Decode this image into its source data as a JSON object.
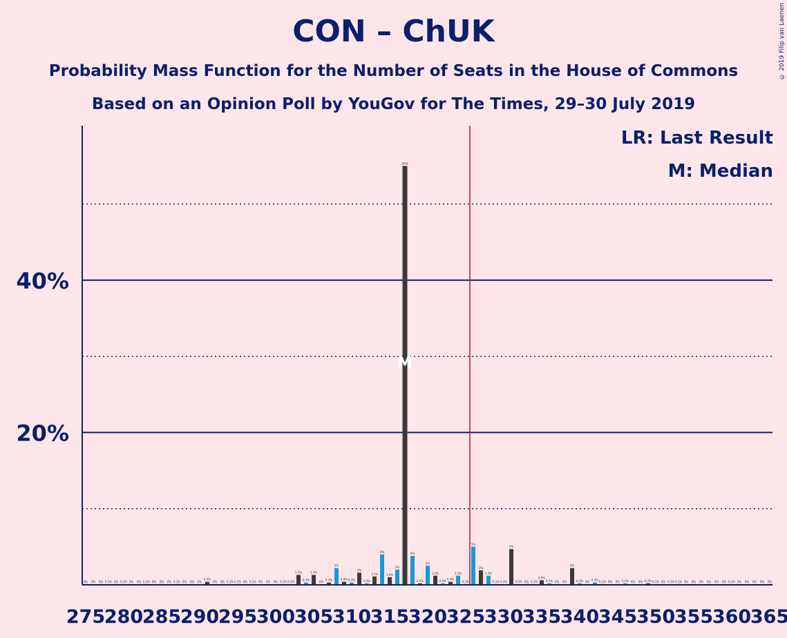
{
  "header": {
    "title": "CON – ChUK",
    "subtitle1": "Probability Mass Function for the Number of Seats in the House of Commons",
    "subtitle2": "Based on an Opinion Poll by YouGov for The Times, 29–30 July 2019",
    "copyright": "© 2019 Filip van Laenen"
  },
  "legend": {
    "last_result": "LR: Last Result",
    "median": "M: Median"
  },
  "colors": {
    "background": "#fde6e9",
    "text": "#0b1f6b",
    "bar_dark": "#3a3a3a",
    "bar_blue": "#1a98d6",
    "last_result_line": "#cc1122",
    "grid": "#0b1f6b"
  },
  "chart_data": {
    "type": "bar",
    "ylim": [
      0,
      60
    ],
    "yticks": [
      20,
      40
    ],
    "ytick_labels": [
      "20%",
      "40%"
    ],
    "solid_gridlines": [
      20,
      40
    ],
    "dotted_gridlines": [
      10,
      30,
      50
    ],
    "xlim": [
      275,
      365
    ],
    "xticks": [
      275,
      280,
      285,
      290,
      295,
      300,
      305,
      310,
      315,
      320,
      325,
      330,
      335,
      340,
      345,
      350,
      355,
      360,
      365
    ],
    "last_result": 326,
    "median": 317,
    "median_marker": "M",
    "last_result_marker": "LR",
    "bars": [
      {
        "seat": 275,
        "value": 0.02,
        "label": "0%"
      },
      {
        "seat": 276,
        "value": 0.02,
        "label": "0%"
      },
      {
        "seat": 277,
        "value": 0.02,
        "label": "0%"
      },
      {
        "seat": 278,
        "value": 0.1,
        "label": "0.1%"
      },
      {
        "seat": 279,
        "value": 0.02,
        "label": "0%"
      },
      {
        "seat": 280,
        "value": 0.1,
        "label": "0.1%"
      },
      {
        "seat": 281,
        "value": 0.02,
        "label": "0%"
      },
      {
        "seat": 282,
        "value": 0.02,
        "label": "0%"
      },
      {
        "seat": 283,
        "value": 0.1,
        "label": "0.1%"
      },
      {
        "seat": 284,
        "value": 0.02,
        "label": "0%"
      },
      {
        "seat": 285,
        "value": 0.02,
        "label": "0%"
      },
      {
        "seat": 286,
        "value": 0.02,
        "label": "0%"
      },
      {
        "seat": 287,
        "value": 0.1,
        "label": "0.1%"
      },
      {
        "seat": 288,
        "value": 0.02,
        "label": "0%"
      },
      {
        "seat": 289,
        "value": 0.02,
        "label": "0%"
      },
      {
        "seat": 290,
        "value": 0.02,
        "label": "0%"
      },
      {
        "seat": 291,
        "value": 0.4,
        "label": "0.4%"
      },
      {
        "seat": 292,
        "value": 0.02,
        "label": "0%"
      },
      {
        "seat": 293,
        "value": 0.02,
        "label": "0%"
      },
      {
        "seat": 294,
        "value": 0.1,
        "label": "0.1%"
      },
      {
        "seat": 295,
        "value": 0.1,
        "label": "0.1%"
      },
      {
        "seat": 296,
        "value": 0.02,
        "label": "0%"
      },
      {
        "seat": 297,
        "value": 0.1,
        "label": "0.1%"
      },
      {
        "seat": 298,
        "value": 0.02,
        "label": "0%"
      },
      {
        "seat": 299,
        "value": 0.02,
        "label": "0%"
      },
      {
        "seat": 300,
        "value": 0.02,
        "label": "0%"
      },
      {
        "seat": 301,
        "value": 0.1,
        "label": "0.1%"
      },
      {
        "seat": 302,
        "value": 0.1,
        "label": "0.1%"
      },
      {
        "seat": 303,
        "value": 1.3,
        "label": "1.3%"
      },
      {
        "seat": 304,
        "value": 0.3,
        "label": "0.3%"
      },
      {
        "seat": 305,
        "value": 1.3,
        "label": "1.3%"
      },
      {
        "seat": 306,
        "value": 0.02,
        "label": "0%"
      },
      {
        "seat": 307,
        "value": 0.3,
        "label": "0.3%"
      },
      {
        "seat": 308,
        "value": 2.2,
        "label": "2%"
      },
      {
        "seat": 309,
        "value": 0.4,
        "label": "0.4%"
      },
      {
        "seat": 310,
        "value": 0.3,
        "label": "0.3%"
      },
      {
        "seat": 311,
        "value": 1.6,
        "label": "2%"
      },
      {
        "seat": 312,
        "value": 0.2,
        "label": "0.2%"
      },
      {
        "seat": 313,
        "value": 1.1,
        "label": "1.1%"
      },
      {
        "seat": 314,
        "value": 4.0,
        "label": "4%"
      },
      {
        "seat": 315,
        "value": 1.0,
        "label": "1.0%"
      },
      {
        "seat": 316,
        "value": 2.0,
        "label": "2%"
      },
      {
        "seat": 317,
        "value": 55.0,
        "label": "55%"
      },
      {
        "seat": 318,
        "value": 3.8,
        "label": "4%"
      },
      {
        "seat": 319,
        "value": 0.2,
        "label": "0.2%"
      },
      {
        "seat": 320,
        "value": 2.5,
        "label": "2%"
      },
      {
        "seat": 321,
        "value": 1.2,
        "label": "1.2%"
      },
      {
        "seat": 322,
        "value": 0.2,
        "label": "0.2%"
      },
      {
        "seat": 323,
        "value": 0.4,
        "label": "0.4%"
      },
      {
        "seat": 324,
        "value": 1.2,
        "label": "1.2%"
      },
      {
        "seat": 325,
        "value": 0.1,
        "label": "0.1%"
      },
      {
        "seat": 326,
        "value": 5.0,
        "label": "5%"
      },
      {
        "seat": 327,
        "value": 1.9,
        "label": "2%"
      },
      {
        "seat": 328,
        "value": 1.2,
        "label": "1.2%"
      },
      {
        "seat": 329,
        "value": 0.1,
        "label": "0.1%"
      },
      {
        "seat": 330,
        "value": 0.1,
        "label": "0.1%"
      },
      {
        "seat": 331,
        "value": 4.7,
        "label": "5%"
      },
      {
        "seat": 332,
        "value": 0.1,
        "label": "0.1%"
      },
      {
        "seat": 333,
        "value": 0.02,
        "label": "0%"
      },
      {
        "seat": 334,
        "value": 0.1,
        "label": "0.1%"
      },
      {
        "seat": 335,
        "value": 0.6,
        "label": "0.6%"
      },
      {
        "seat": 336,
        "value": 0.2,
        "label": "0.2%"
      },
      {
        "seat": 337,
        "value": 0.02,
        "label": "0%"
      },
      {
        "seat": 338,
        "value": 0.02,
        "label": "0%"
      },
      {
        "seat": 339,
        "value": 2.2,
        "label": "2%"
      },
      {
        "seat": 340,
        "value": 0.2,
        "label": "0.2%"
      },
      {
        "seat": 341,
        "value": 0.02,
        "label": "0%"
      },
      {
        "seat": 342,
        "value": 0.3,
        "label": "0.3%"
      },
      {
        "seat": 343,
        "value": 0.1,
        "label": "0.1%"
      },
      {
        "seat": 344,
        "value": 0.02,
        "label": "0%"
      },
      {
        "seat": 345,
        "value": 0.02,
        "label": "0%"
      },
      {
        "seat": 346,
        "value": 0.2,
        "label": "0.2%"
      },
      {
        "seat": 347,
        "value": 0.02,
        "label": "0%"
      },
      {
        "seat": 348,
        "value": 0.02,
        "label": "0%"
      },
      {
        "seat": 349,
        "value": 0.2,
        "label": "0.2%"
      },
      {
        "seat": 350,
        "value": 0.1,
        "label": "0.1%"
      },
      {
        "seat": 351,
        "value": 0.02,
        "label": "0%"
      },
      {
        "seat": 352,
        "value": 0.1,
        "label": "0.1%"
      },
      {
        "seat": 353,
        "value": 0.1,
        "label": "0.1%"
      },
      {
        "seat": 354,
        "value": 0.02,
        "label": "0%"
      },
      {
        "seat": 355,
        "value": 0.02,
        "label": "0%"
      },
      {
        "seat": 356,
        "value": 0.02,
        "label": "0%"
      },
      {
        "seat": 357,
        "value": 0.02,
        "label": "0%"
      },
      {
        "seat": 358,
        "value": 0.02,
        "label": "0%"
      },
      {
        "seat": 359,
        "value": 0.02,
        "label": "0%"
      },
      {
        "seat": 360,
        "value": 0.1,
        "label": "0.1%"
      },
      {
        "seat": 361,
        "value": 0.02,
        "label": "0%"
      },
      {
        "seat": 362,
        "value": 0.02,
        "label": "0%"
      },
      {
        "seat": 363,
        "value": 0.02,
        "label": "0%"
      },
      {
        "seat": 364,
        "value": 0.02,
        "label": "0%"
      },
      {
        "seat": 365,
        "value": 0.02,
        "label": "0%"
      }
    ]
  }
}
